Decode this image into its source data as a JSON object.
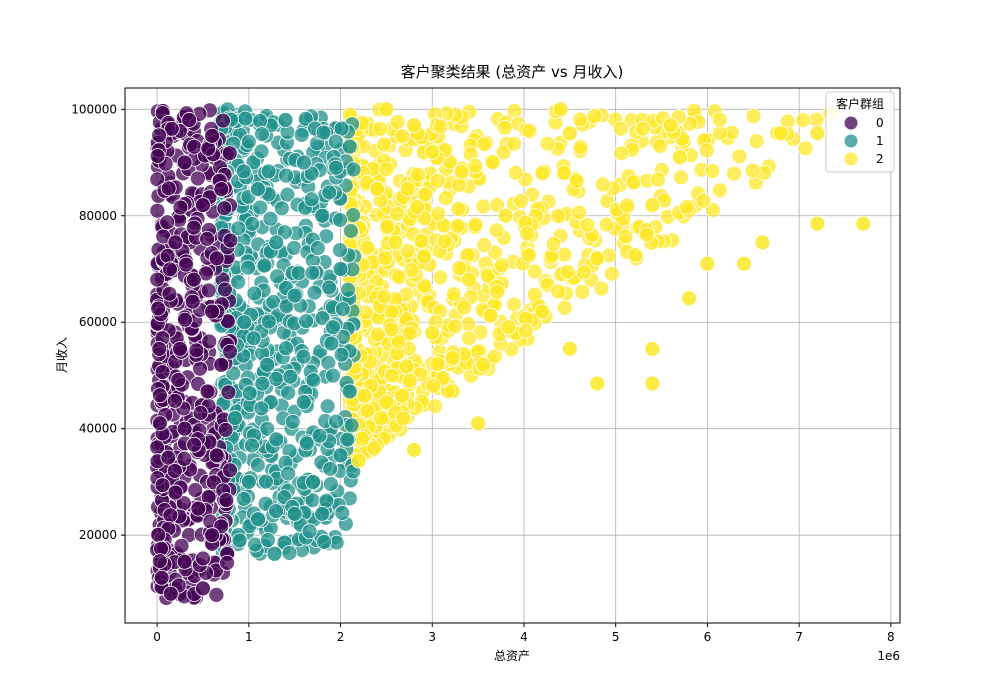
{
  "chart_data": {
    "type": "scatter",
    "title": "客户聚类结果 (总资产 vs 月收入)",
    "xlabel": "总资产",
    "ylabel": "月收入",
    "x_offset_label": "1e6",
    "xlim": [
      -0.35,
      8.1
    ],
    "ylim": [
      3500,
      104000
    ],
    "x_scale_multiplier": 1000000,
    "xticks": [
      0,
      1,
      2,
      3,
      4,
      5,
      6,
      7,
      8
    ],
    "yticks": [
      20000,
      40000,
      60000,
      80000,
      100000
    ],
    "grid": true,
    "legend": {
      "title": "客户群组",
      "placement": "top-right",
      "entries": [
        "0",
        "1",
        "2"
      ]
    },
    "series": [
      {
        "name": "0",
        "color": "#440154",
        "x_range": [
          0.0,
          0.8
        ],
        "y_range": [
          8000,
          100000
        ],
        "sample_points": [
          [
            0.05,
            12000
          ],
          [
            0.15,
            9000
          ],
          [
            0.3,
            15000
          ],
          [
            0.5,
            10000
          ],
          [
            0.6,
            20000
          ],
          [
            0.2,
            28000
          ],
          [
            0.45,
            25000
          ],
          [
            0.65,
            35000
          ],
          [
            0.3,
            40000
          ],
          [
            0.55,
            47000
          ],
          [
            0.7,
            52000
          ],
          [
            0.25,
            55000
          ],
          [
            0.6,
            62000
          ],
          [
            0.4,
            68000
          ],
          [
            0.65,
            72000
          ],
          [
            0.2,
            75000
          ],
          [
            0.5,
            82000
          ],
          [
            0.7,
            85000
          ],
          [
            0.3,
            90000
          ],
          [
            0.6,
            95000
          ],
          [
            0.35,
            98000
          ]
        ]
      },
      {
        "name": "1",
        "color": "#21918c",
        "x_range": [
          0.7,
          2.15
        ],
        "y_range": [
          16500,
          100000
        ],
        "sample_points": [
          [
            1.28,
            16500
          ],
          [
            0.9,
            19000
          ],
          [
            1.1,
            23000
          ],
          [
            1.5,
            24000
          ],
          [
            1.8,
            24000
          ],
          [
            1.0,
            30000
          ],
          [
            1.7,
            30000
          ],
          [
            2.0,
            35000
          ],
          [
            1.3,
            38000
          ],
          [
            0.85,
            42000
          ],
          [
            1.6,
            45000
          ],
          [
            2.1,
            47000
          ],
          [
            1.2,
            52000
          ],
          [
            1.9,
            56000
          ],
          [
            0.95,
            60000
          ],
          [
            1.5,
            65000
          ],
          [
            2.0,
            70000
          ],
          [
            1.3,
            75000
          ],
          [
            1.8,
            80000
          ],
          [
            1.1,
            85000
          ],
          [
            1.6,
            90000
          ],
          [
            2.1,
            93000
          ],
          [
            1.4,
            98000
          ]
        ]
      },
      {
        "name": "2",
        "color": "#fde725",
        "x_range": [
          2.1,
          7.75
        ],
        "y_range": [
          33000,
          100000
        ],
        "sample_points": [
          [
            2.2,
            34000
          ],
          [
            2.8,
            36000
          ],
          [
            3.5,
            41000
          ],
          [
            4.8,
            48500
          ],
          [
            5.4,
            48500
          ],
          [
            2.5,
            45000
          ],
          [
            4.5,
            55000
          ],
          [
            5.4,
            55000
          ],
          [
            3.0,
            58000
          ],
          [
            4.2,
            62000
          ],
          [
            5.8,
            64500
          ],
          [
            3.4,
            68000
          ],
          [
            6.0,
            71000
          ],
          [
            6.4,
            71000
          ],
          [
            4.8,
            72000
          ],
          [
            2.6,
            75000
          ],
          [
            6.6,
            75000
          ],
          [
            7.2,
            78500
          ],
          [
            7.7,
            78500
          ],
          [
            3.8,
            80000
          ],
          [
            5.4,
            82000
          ],
          [
            2.4,
            85000
          ],
          [
            4.2,
            88000
          ],
          [
            5.7,
            91000
          ],
          [
            3.0,
            92000
          ],
          [
            6.8,
            95500
          ],
          [
            7.2,
            95500
          ],
          [
            4.5,
            95500
          ],
          [
            2.8,
            97000
          ],
          [
            5.6,
            97000
          ],
          [
            2.5,
            100000
          ],
          [
            4.4,
            100000
          ]
        ]
      }
    ]
  }
}
